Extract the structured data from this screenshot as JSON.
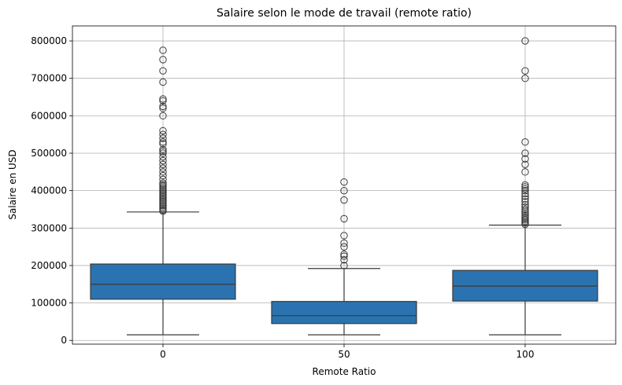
{
  "chart_data": {
    "type": "box",
    "title": "Salaire selon le mode de travail (remote ratio)",
    "xlabel": "Remote Ratio",
    "ylabel": "Salaire en USD",
    "ylim": [
      -10000,
      840000
    ],
    "yticks": [
      0,
      100000,
      200000,
      300000,
      400000,
      500000,
      600000,
      700000,
      800000
    ],
    "ytick_labels": [
      "0",
      "100000",
      "200000",
      "300000",
      "400000",
      "500000",
      "600000",
      "700000",
      "800000"
    ],
    "categories": [
      "0",
      "50",
      "100"
    ],
    "grid": true,
    "box_color": "#2b73b0",
    "line_color": "#3a3a3a",
    "boxes": [
      {
        "category": "0",
        "whisker_low": 15000,
        "q1": 110000,
        "median": 150000,
        "q3": 204000,
        "whisker_high": 343000,
        "outliers": [
          345000,
          348000,
          352000,
          356000,
          360000,
          364000,
          368000,
          372000,
          376000,
          380000,
          384000,
          388000,
          392000,
          396000,
          400000,
          404000,
          408000,
          412000,
          416000,
          420000,
          430000,
          440000,
          450000,
          460000,
          470000,
          480000,
          490000,
          500000,
          505000,
          510000,
          525000,
          530000,
          540000,
          550000,
          560000,
          600000,
          620000,
          625000,
          640000,
          645000,
          690000,
          720000,
          750000,
          775000
        ]
      },
      {
        "category": "50",
        "whisker_low": 15000,
        "q1": 45000,
        "median": 66000,
        "q3": 104000,
        "whisker_high": 192000,
        "outliers": [
          200000,
          215000,
          225000,
          230000,
          250000,
          260000,
          280000,
          325000,
          375000,
          400000,
          423000
        ]
      },
      {
        "category": "100",
        "whisker_low": 15000,
        "q1": 105000,
        "median": 145000,
        "q3": 187000,
        "whisker_high": 308000,
        "outliers": [
          310000,
          314000,
          318000,
          322000,
          326000,
          330000,
          335000,
          340000,
          345000,
          350000,
          356000,
          362000,
          370000,
          378000,
          385000,
          392000,
          400000,
          405000,
          410000,
          415000,
          450000,
          470000,
          485000,
          500000,
          530000,
          700000,
          720000,
          800000
        ]
      }
    ]
  }
}
